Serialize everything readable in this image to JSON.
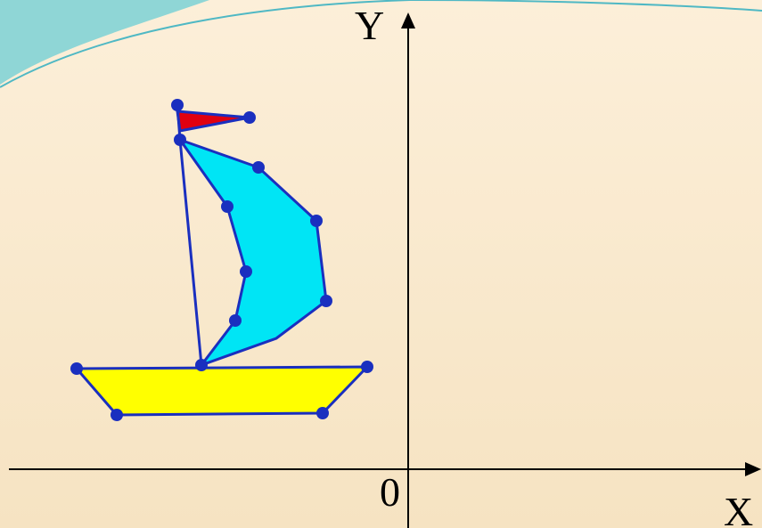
{
  "axes": {
    "y_label": "Y",
    "x_label": "X",
    "origin_label": "0"
  }
}
